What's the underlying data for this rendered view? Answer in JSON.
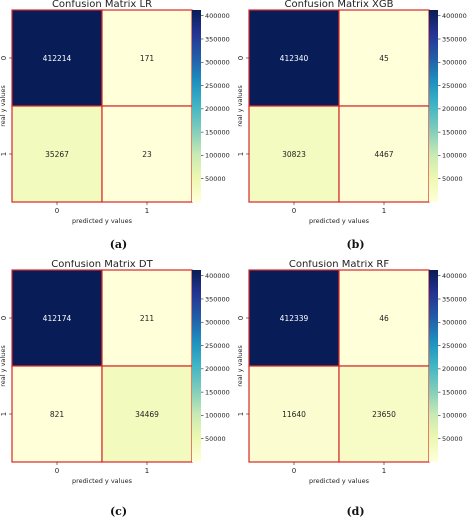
{
  "chart_data": [
    {
      "type": "heatmap",
      "title": "Confusion Matrix LR",
      "xlabel": "predicted y values",
      "ylabel": "real y values",
      "x_ticks": [
        "0",
        "1"
      ],
      "y_ticks": [
        "0",
        "1"
      ],
      "values": [
        [
          412214,
          171
        ],
        [
          35267,
          23
        ]
      ],
      "colorbar_ticks": [
        50000,
        100000,
        150000,
        200000,
        250000,
        300000,
        350000,
        400000
      ],
      "colorbar_range": [
        0,
        412214
      ],
      "colormap": "YlGnBu",
      "caption": "(a)"
    },
    {
      "type": "heatmap",
      "title": "Confusion Matrix XGB",
      "xlabel": "predicted y values",
      "ylabel": "real y values",
      "x_ticks": [
        "0",
        "1"
      ],
      "y_ticks": [
        "0",
        "1"
      ],
      "values": [
        [
          412340,
          45
        ],
        [
          30823,
          4467
        ]
      ],
      "colorbar_ticks": [
        50000,
        100000,
        150000,
        200000,
        250000,
        300000,
        350000,
        400000
      ],
      "colorbar_range": [
        0,
        412340
      ],
      "colormap": "YlGnBu",
      "caption": "(b)"
    },
    {
      "type": "heatmap",
      "title": "Confusion Matrix DT",
      "xlabel": "predicted y values",
      "ylabel": "real y values",
      "x_ticks": [
        "0",
        "1"
      ],
      "y_ticks": [
        "0",
        "1"
      ],
      "values": [
        [
          412174,
          211
        ],
        [
          821,
          34469
        ]
      ],
      "colorbar_ticks": [
        50000,
        100000,
        150000,
        200000,
        250000,
        300000,
        350000,
        400000
      ],
      "colorbar_range": [
        0,
        412174
      ],
      "colormap": "YlGnBu",
      "caption": "(c)"
    },
    {
      "type": "heatmap",
      "title": "Confusion Matrix RF",
      "xlabel": "predicted y values",
      "ylabel": "real y values",
      "x_ticks": [
        "0",
        "1"
      ],
      "y_ticks": [
        "0",
        "1"
      ],
      "values": [
        [
          412339,
          46
        ],
        [
          11640,
          23650
        ]
      ],
      "colorbar_ticks": [
        50000,
        100000,
        150000,
        200000,
        250000,
        300000,
        350000,
        400000
      ],
      "colorbar_range": [
        0,
        412339
      ],
      "colormap": "YlGnBu",
      "caption": "(d)"
    }
  ]
}
